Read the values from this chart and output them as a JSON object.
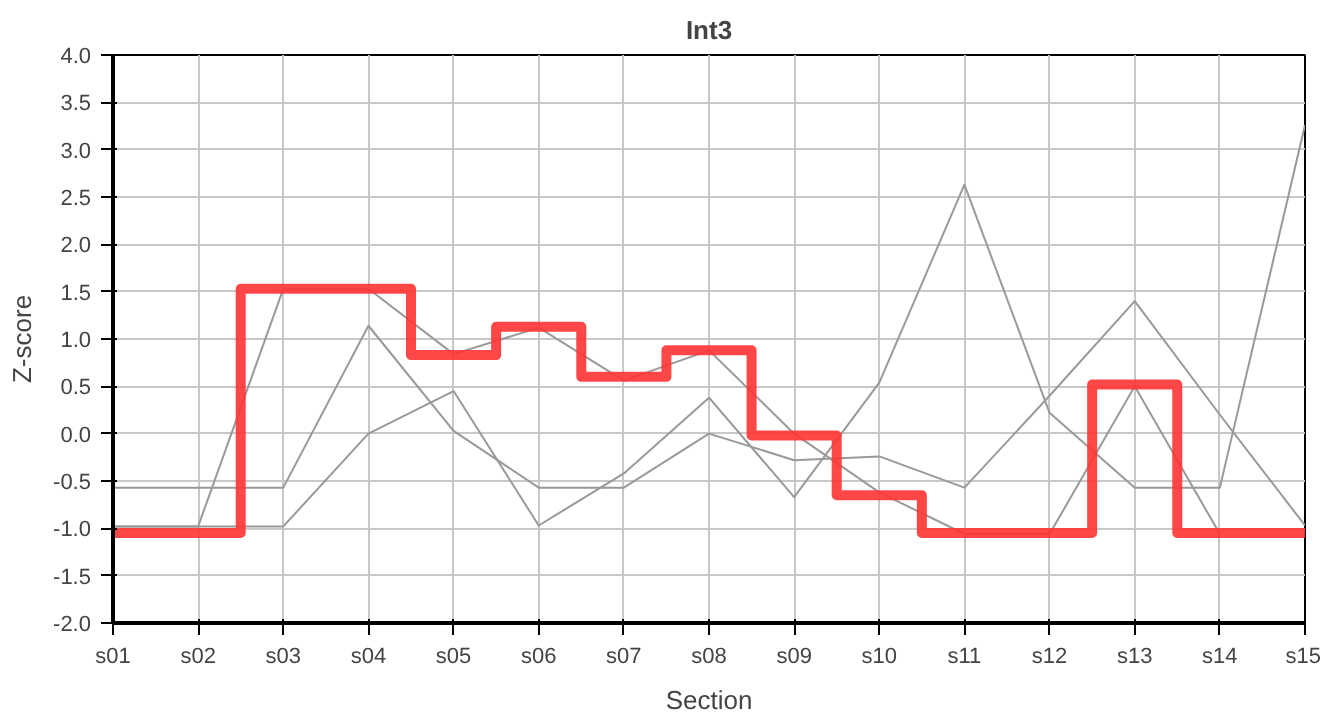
{
  "chart_data": {
    "type": "line",
    "title": "Int3",
    "xlabel": "Section",
    "ylabel": "Z-score",
    "categories": [
      "s01",
      "s02",
      "s03",
      "s04",
      "s05",
      "s06",
      "s07",
      "s08",
      "s09",
      "s10",
      "s11",
      "s12",
      "s13",
      "s14",
      "s15"
    ],
    "series": [
      {
        "color": "#999999",
        "values": [
          -0.98,
          -0.98,
          1.53,
          1.53,
          0.84,
          1.12,
          0.56,
          0.88,
          0.0,
          -0.62,
          -1.06,
          -1.06,
          0.5,
          -1.06,
          null
        ]
      },
      {
        "color": "#999999",
        "values": [
          -0.57,
          -0.57,
          -0.57,
          1.14,
          0.03,
          -0.57,
          -0.57,
          0.0,
          -0.28,
          -0.24,
          -0.57,
          0.4,
          1.4,
          0.2,
          -0.97
        ]
      },
      {
        "color": "#999999",
        "values": [
          -0.98,
          -0.98,
          -0.98,
          0.0,
          0.45,
          -0.97,
          -0.42,
          0.38,
          -0.67,
          0.54,
          2.63,
          0.22,
          -0.57,
          -0.57,
          3.26
        ]
      },
      {
        "type": "step",
        "color": "#ff3333",
        "values": [
          -1.05,
          -1.05,
          1.53,
          1.53,
          0.83,
          1.13,
          0.6,
          0.88,
          -0.02,
          -0.65,
          -1.05,
          -1.05,
          0.52,
          -1.05,
          -1.05
        ]
      }
    ],
    "ylim": [
      -2.0,
      4.0
    ],
    "yticks": [
      {
        "value": -2,
        "label": "-2.0"
      },
      {
        "value": -1.5,
        "label": "-1.5"
      },
      {
        "value": -1,
        "label": "-1.0"
      },
      {
        "value": -0.5,
        "label": "-0.5"
      },
      {
        "value": 0,
        "label": "0.0"
      },
      {
        "value": 0.5,
        "label": "0.5"
      },
      {
        "value": 1,
        "label": "1.0"
      },
      {
        "value": 1.5,
        "label": "1.5"
      },
      {
        "value": 2,
        "label": "2.0"
      },
      {
        "value": 2.5,
        "label": "2.5"
      },
      {
        "value": 3,
        "label": "3.0"
      },
      {
        "value": 3.5,
        "label": "3.5"
      },
      {
        "value": 4,
        "label": "4.0"
      }
    ],
    "grid": true,
    "marker": "none",
    "line_style": "solid"
  }
}
